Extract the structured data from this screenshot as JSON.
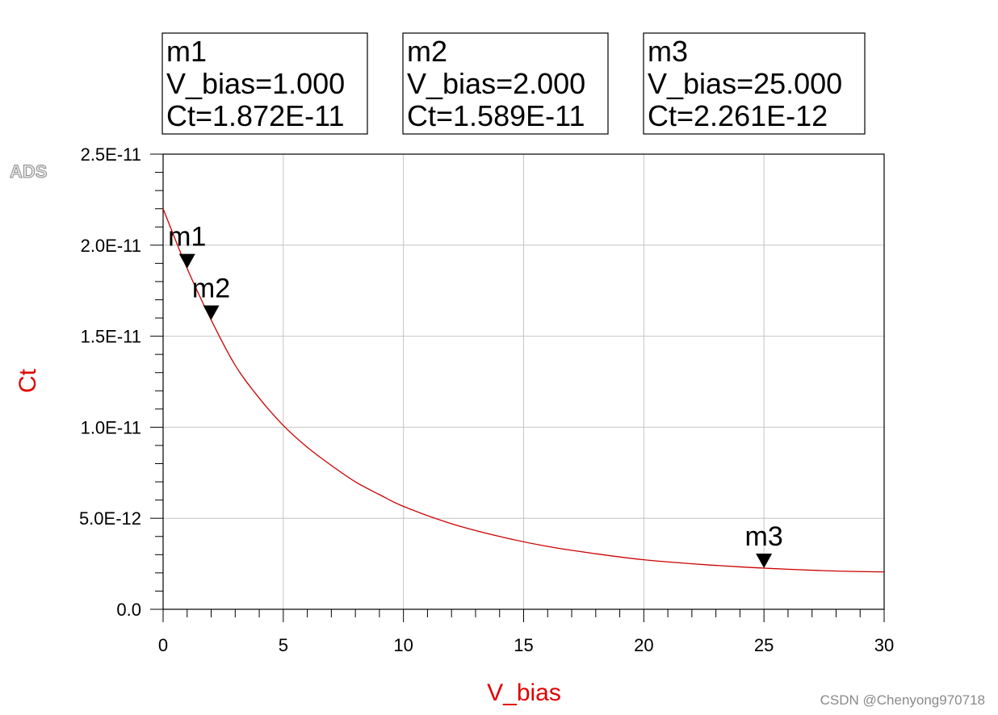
{
  "logo": "ADS",
  "watermark": "CSDN @Chenyong970718",
  "marker_boxes": [
    {
      "name": "m1",
      "line1": "V_bias=1.000",
      "line2": "Ct=1.872E-11"
    },
    {
      "name": "m2",
      "line1": "V_bias=2.000",
      "line2": "Ct=1.589E-11"
    },
    {
      "name": "m3",
      "line1": "V_bias=25.000",
      "line2": "Ct=2.261E-12"
    }
  ],
  "chart_data": {
    "type": "line",
    "xlabel": "V_bias",
    "ylabel": "Ct",
    "xlim": [
      0,
      30
    ],
    "ylim": [
      0,
      2.5e-11
    ],
    "x_ticks": [
      "0",
      "5",
      "10",
      "15",
      "20",
      "25",
      "30"
    ],
    "y_ticks": [
      "0.0",
      "5.0E-12",
      "1.0E-11",
      "1.5E-11",
      "2.0E-11",
      "2.5E-11"
    ],
    "grid": true,
    "axis_label_color": "#e00000",
    "series": [
      {
        "color": "#cc0000",
        "x": [
          0,
          1,
          2,
          3,
          4,
          5,
          6,
          7,
          8,
          9,
          10,
          12,
          14,
          16,
          18,
          20,
          22,
          24,
          25,
          26,
          28,
          30
        ],
        "y": [
          2.2e-11,
          1.872e-11,
          1.589e-11,
          1.34e-11,
          1.16e-11,
          1.01e-11,
          8.9e-12,
          7.9e-12,
          7e-12,
          6.3e-12,
          5.65e-12,
          4.7e-12,
          4e-12,
          3.45e-12,
          3.05e-12,
          2.72e-12,
          2.5e-12,
          2.33e-12,
          2.261e-12,
          2.2e-12,
          2.1e-12,
          2.05e-12
        ]
      }
    ],
    "markers": [
      {
        "label": "m1",
        "x": 1,
        "y": 1.872e-11
      },
      {
        "label": "m2",
        "x": 2,
        "y": 1.589e-11
      },
      {
        "label": "m3",
        "x": 25,
        "y": 2.261e-12
      }
    ]
  }
}
